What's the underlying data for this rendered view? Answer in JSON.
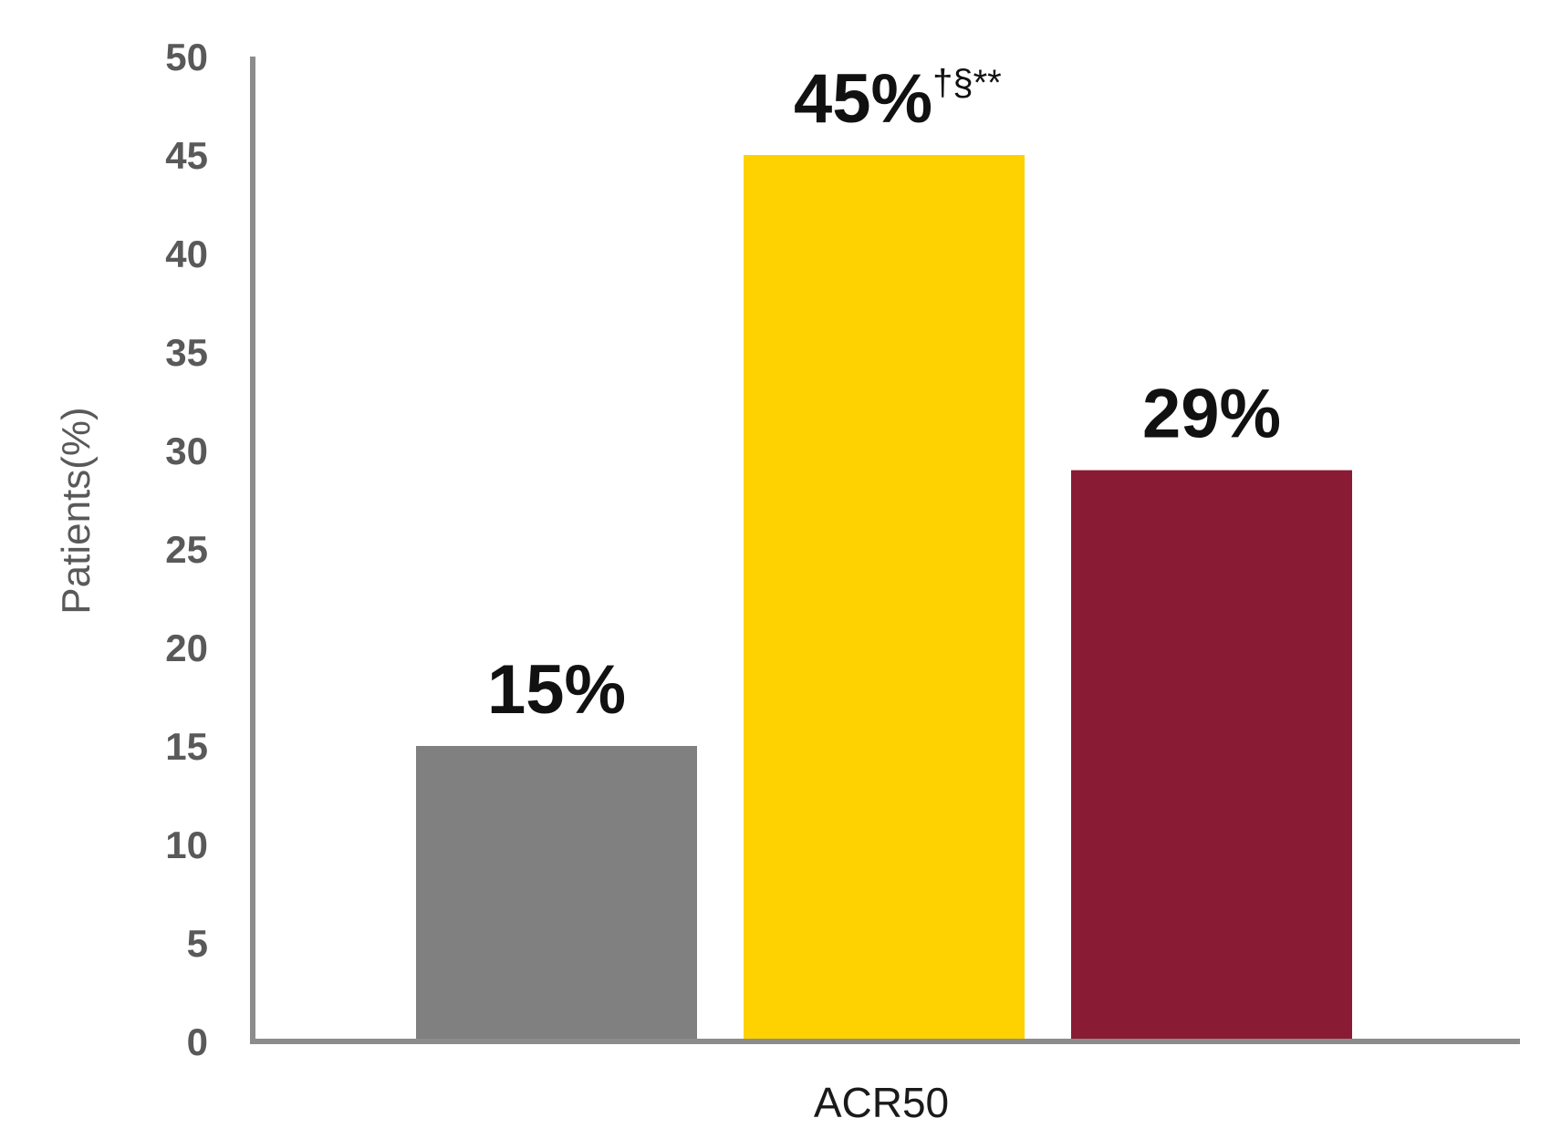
{
  "chart_data": {
    "type": "bar",
    "ylabel": "Patients(%)",
    "xlabel": "",
    "ylim": [
      0,
      50
    ],
    "yticks": [
      0,
      5,
      10,
      15,
      20,
      25,
      30,
      35,
      40,
      45,
      50
    ],
    "categories": [
      "ACR50"
    ],
    "grid": false,
    "legend": "none",
    "bars": [
      {
        "value": 15,
        "label": "15%",
        "suffix": "",
        "color": "#808080"
      },
      {
        "value": 45,
        "label": "45%",
        "suffix": "†§**",
        "color": "#FED100"
      },
      {
        "value": 29,
        "label": "29%",
        "suffix": "",
        "color": "#8A1B35"
      }
    ],
    "axis_color": "#8c8c8c"
  }
}
